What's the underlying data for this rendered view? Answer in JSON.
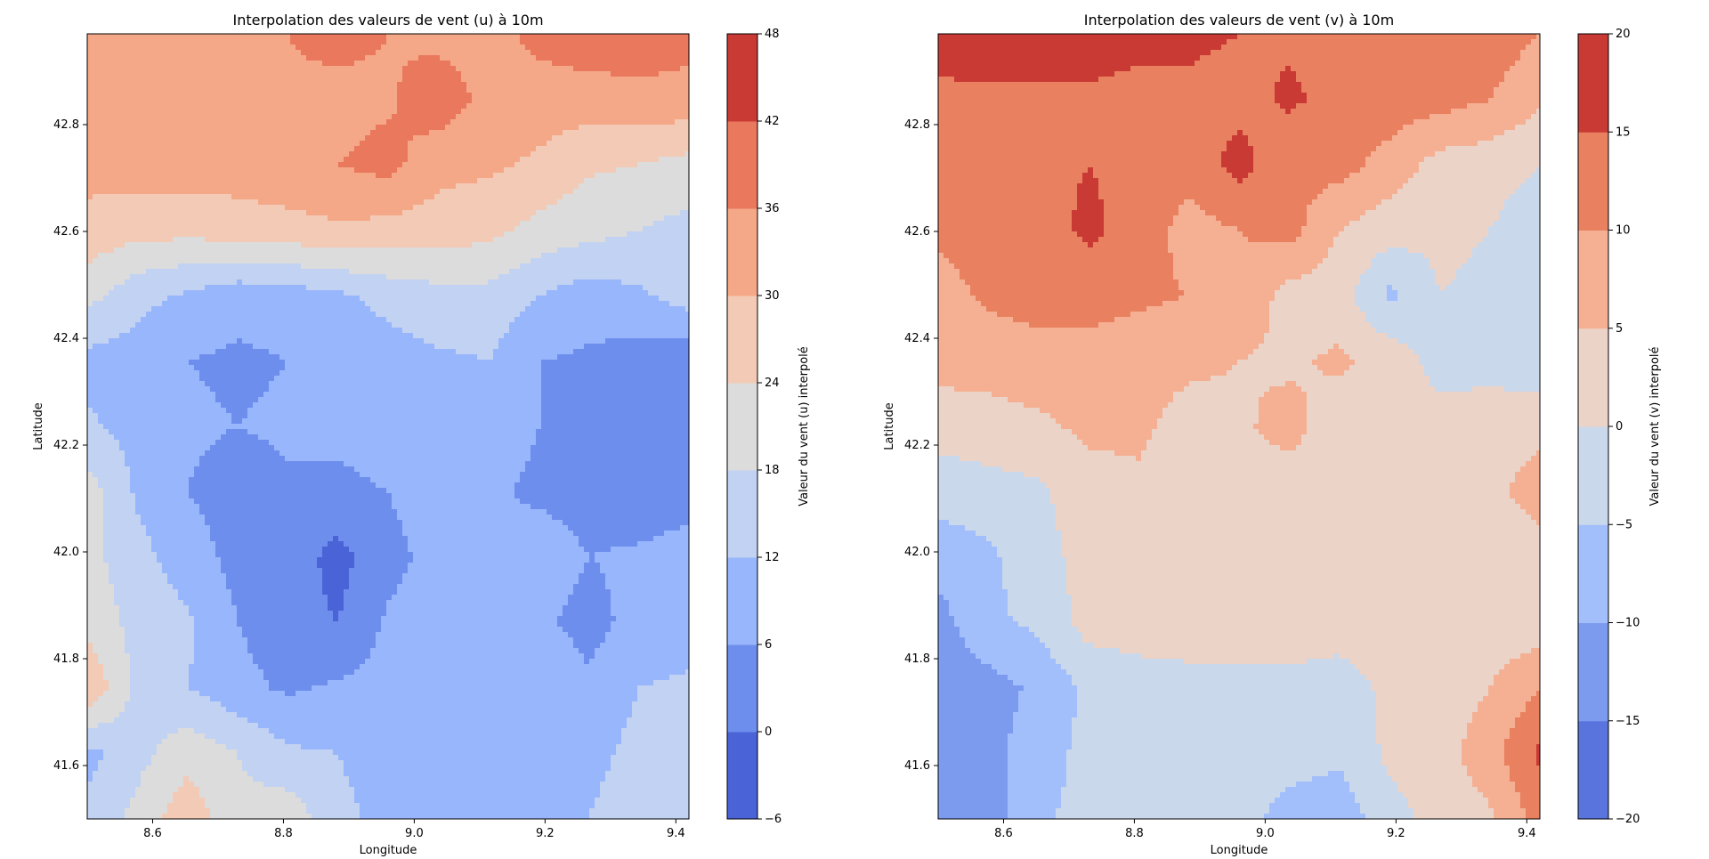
{
  "chart_data": [
    {
      "type": "heatmap",
      "subtype": "filled-contour",
      "title": "Interpolation des valeurs de vent (u) à 10m",
      "xlabel": "Longitude",
      "ylabel": "Latitude",
      "xlim": [
        8.5,
        9.42
      ],
      "ylim": [
        41.5,
        42.97
      ],
      "xticks": [
        8.6,
        8.8,
        9.0,
        9.2,
        9.4
      ],
      "yticks": [
        41.6,
        41.8,
        42.0,
        42.2,
        42.4,
        42.6,
        42.8
      ],
      "colorbar": {
        "label": "Valeur du vent (u) interpolé",
        "levels": [
          -6,
          0,
          6,
          12,
          18,
          24,
          30,
          36,
          42,
          48
        ],
        "colors": [
          "#4a63d6",
          "#6e8eed",
          "#98b6fb",
          "#c1d2f2",
          "#dcdcdc",
          "#f2cab5",
          "#f5a888",
          "#e9785d",
          "#c93a35"
        ]
      },
      "colormap": "coolwarm",
      "grid_values": [
        [
          14,
          20,
          28,
          20,
          22,
          14,
          10,
          10,
          8,
          10,
          12,
          16,
          14
        ],
        [
          10,
          16,
          22,
          18,
          13,
          12,
          8,
          6,
          8,
          9,
          10,
          14,
          12
        ],
        [
          30,
          16,
          12,
          8,
          5,
          7,
          8,
          10,
          9,
          12,
          7,
          12,
          13
        ],
        [
          22,
          16,
          13,
          6,
          2,
          0,
          7,
          9,
          10,
          7,
          4,
          8,
          9
        ],
        [
          20,
          14,
          9,
          4,
          3,
          -2,
          4,
          8,
          6,
          9,
          6,
          7,
          9
        ],
        [
          21,
          11,
          6,
          3,
          5,
          4,
          6,
          10,
          7,
          5,
          4,
          2,
          3
        ],
        [
          13,
          10,
          7,
          6,
          7,
          8,
          10,
          11,
          9,
          6,
          4,
          5,
          6
        ],
        [
          10,
          9,
          6,
          5,
          6,
          8,
          9,
          11,
          12,
          6,
          5,
          3,
          1
        ],
        [
          20,
          14,
          11,
          8,
          9,
          11,
          14,
          16,
          16,
          12,
          9,
          11,
          15
        ],
        [
          28,
          26,
          26,
          27,
          28,
          29,
          28,
          27,
          26,
          22,
          20,
          18,
          16
        ],
        [
          32,
          33,
          33,
          33,
          34,
          36,
          38,
          32,
          31,
          29,
          25,
          24,
          22
        ],
        [
          34,
          35,
          34,
          34,
          35,
          34,
          35,
          40,
          34,
          33,
          33,
          34,
          34
        ],
        [
          34,
          35,
          35,
          35,
          36,
          38,
          36,
          34,
          33,
          38,
          40,
          40,
          38
        ]
      ]
    },
    {
      "type": "heatmap",
      "subtype": "filled-contour",
      "title": "Interpolation des valeurs de vent (v) à 10m",
      "xlabel": "Longitude",
      "ylabel": "Latitude",
      "xlim": [
        8.5,
        9.42
      ],
      "ylim": [
        41.5,
        42.97
      ],
      "xticks": [
        8.6,
        8.8,
        9.0,
        9.2,
        9.4
      ],
      "yticks": [
        41.6,
        41.8,
        42.0,
        42.2,
        42.4,
        42.6,
        42.8
      ],
      "colorbar": {
        "label": "Valeur du vent (v) interpolé",
        "levels": [
          -20,
          -15,
          -10,
          -5,
          0,
          5,
          10,
          15,
          20
        ],
        "colors": [
          "#5a74de",
          "#7c9bef",
          "#a2befb",
          "#cad8ec",
          "#ecd3c8",
          "#f5b094",
          "#e9805f",
          "#c93a35"
        ]
      },
      "colormap": "coolwarm",
      "grid_values": [
        [
          -11,
          -12,
          -6,
          -3,
          -2,
          -4,
          -3,
          -7,
          -8,
          -2,
          2,
          4,
          12
        ],
        [
          -13,
          -11,
          -8,
          -3,
          -3,
          -2,
          -2,
          -3,
          -4,
          1,
          3,
          8,
          16
        ],
        [
          -14,
          -12,
          -9,
          -4,
          -2,
          -2,
          -1,
          -1,
          -2,
          1,
          2,
          5,
          10
        ],
        [
          -12,
          -6,
          -4,
          2,
          2,
          3,
          2,
          2,
          2,
          3,
          2,
          2,
          2
        ],
        [
          -8,
          -6,
          -2,
          2,
          3,
          2,
          4,
          3,
          3,
          3,
          3,
          2,
          2
        ],
        [
          -3,
          -2,
          -1,
          3,
          4,
          2,
          3,
          2,
          3,
          2,
          3,
          3,
          8
        ],
        [
          2,
          3,
          4,
          6,
          6,
          3,
          4,
          7,
          2,
          3,
          2,
          3,
          3
        ],
        [
          7,
          7,
          8,
          8,
          7,
          6,
          5,
          4,
          6,
          3,
          -2,
          -2,
          -3
        ],
        [
          8,
          11,
          12,
          12,
          11,
          10,
          9,
          3,
          2,
          -6,
          0,
          -1,
          -2
        ],
        [
          11,
          12,
          13,
          16,
          13,
          8,
          10,
          12,
          5,
          2,
          1,
          0,
          -3
        ],
        [
          11,
          13,
          14,
          15,
          14,
          12,
          17,
          11,
          12,
          8,
          3,
          2,
          0
        ],
        [
          14,
          14,
          14,
          14,
          13,
          14,
          13,
          16,
          13,
          13,
          12,
          10,
          6
        ],
        [
          17,
          18,
          18,
          18,
          17,
          16,
          15,
          14,
          14,
          15,
          14,
          13,
          10
        ]
      ]
    }
  ]
}
